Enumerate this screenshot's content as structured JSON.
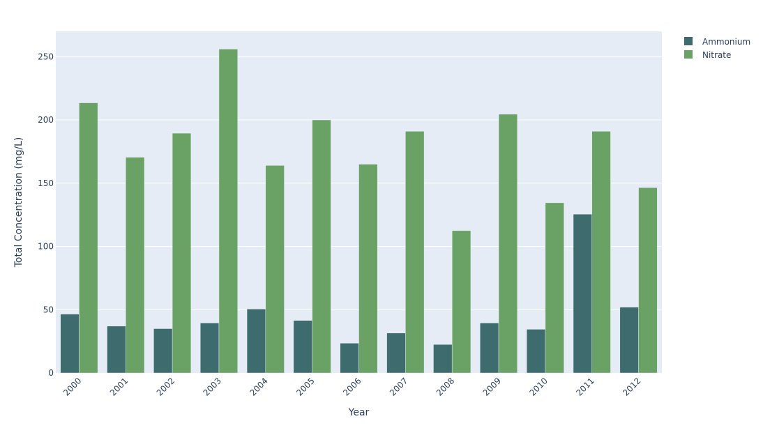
{
  "chart_data": {
    "type": "bar",
    "categories": [
      "2000",
      "2001",
      "2002",
      "2003",
      "2004",
      "2005",
      "2006",
      "2007",
      "2008",
      "2009",
      "2010",
      "2011",
      "2012"
    ],
    "series": [
      {
        "name": "Ammonium",
        "color": "#3d6b6e",
        "values": [
          46.5,
          37,
          35,
          39.5,
          50.5,
          41.5,
          23.5,
          31.5,
          22.5,
          39.5,
          34.5,
          125.5,
          52
        ]
      },
      {
        "name": "Nitrate",
        "color": "#6aa266",
        "values": [
          213.5,
          170.5,
          189.5,
          256,
          164,
          200,
          165,
          191,
          112.5,
          204.5,
          134.5,
          191,
          146.5
        ]
      }
    ],
    "xlabel": "Year",
    "ylabel": "Total Concentration (mg/L)",
    "ylim": [
      0,
      270
    ],
    "yticks": [
      0,
      50,
      100,
      150,
      200,
      250
    ],
    "grid": true,
    "legend_position": "top-right",
    "plot_background": "#e5ecf6"
  }
}
